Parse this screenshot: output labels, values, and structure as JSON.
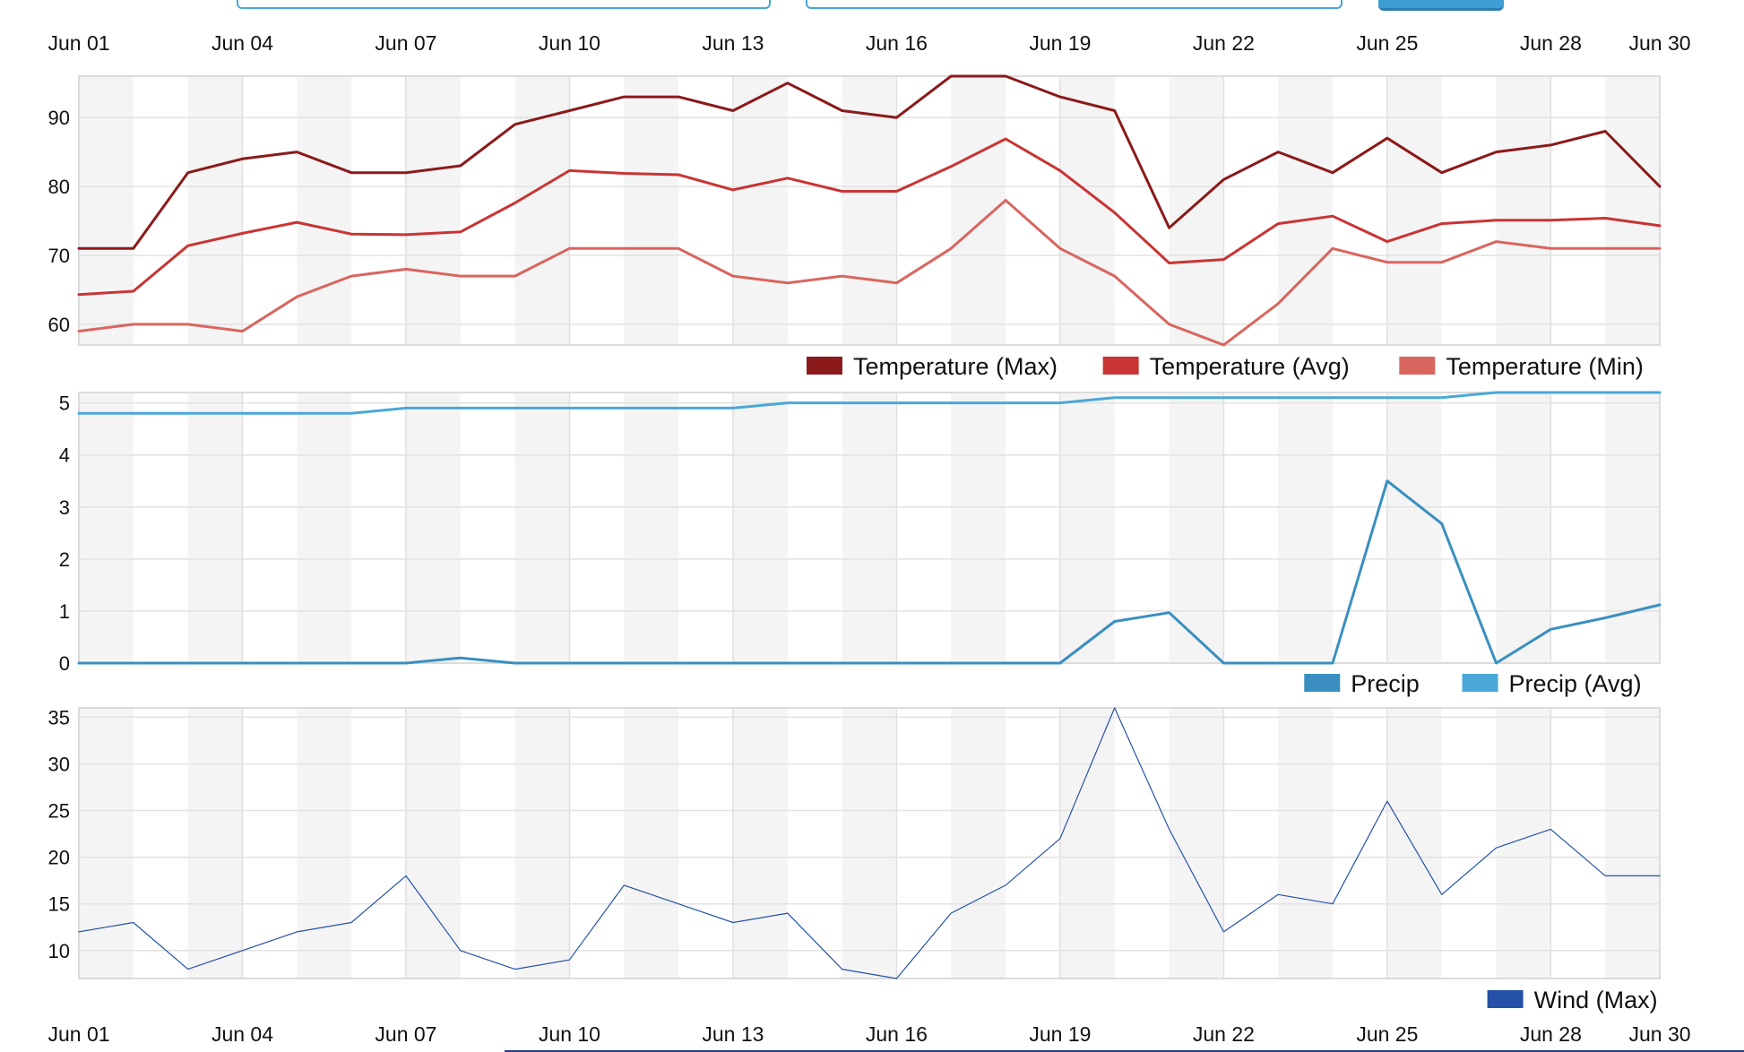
{
  "controls": {
    "input_1": "",
    "input_2": "",
    "button": ""
  },
  "chart_data": [
    {
      "type": "line",
      "x": [
        "Jun 01",
        "Jun 02",
        "Jun 03",
        "Jun 04",
        "Jun 05",
        "Jun 06",
        "Jun 07",
        "Jun 08",
        "Jun 09",
        "Jun 10",
        "Jun 11",
        "Jun 12",
        "Jun 13",
        "Jun 14",
        "Jun 15",
        "Jun 16",
        "Jun 17",
        "Jun 18",
        "Jun 19",
        "Jun 20",
        "Jun 21",
        "Jun 22",
        "Jun 23",
        "Jun 24",
        "Jun 25",
        "Jun 26",
        "Jun 27",
        "Jun 28",
        "Jun 29",
        "Jun 30"
      ],
      "x_tick_labels": [
        "Jun 01",
        "Jun 04",
        "Jun 07",
        "Jun 10",
        "Jun 13",
        "Jun 16",
        "Jun 19",
        "Jun 22",
        "Jun 25",
        "Jun 28",
        "Jun 30"
      ],
      "y_ticks": [
        60,
        70,
        80,
        90
      ],
      "ylim": [
        57,
        96
      ],
      "grid": true,
      "legend_position": "bottom-right",
      "series": [
        {
          "name": "Temperature (Max)",
          "color": "#8b1a1a",
          "width": 3,
          "values": [
            71,
            71,
            82,
            84,
            85,
            82,
            82,
            83,
            89,
            91,
            93,
            93,
            91,
            95,
            91,
            90,
            96,
            96,
            93,
            91,
            74,
            81,
            85,
            82,
            87,
            82,
            85,
            86,
            88,
            80
          ]
        },
        {
          "name": "Temperature (Avg)",
          "color": "#c93434",
          "width": 3,
          "values": [
            64.3,
            64.8,
            71.4,
            73.2,
            74.8,
            73.1,
            73.0,
            73.4,
            77.6,
            82.3,
            81.9,
            81.7,
            79.5,
            81.2,
            79.3,
            79.3,
            82.9,
            86.9,
            82.3,
            76.2,
            68.9,
            69.4,
            74.6,
            75.7,
            72.0,
            74.6,
            75.1,
            75.1,
            75.4,
            74.3
          ]
        },
        {
          "name": "Temperature (Min)",
          "color": "#d9655f",
          "width": 3,
          "values": [
            59,
            60,
            60,
            59,
            64,
            67,
            68,
            67,
            67,
            71,
            71,
            71,
            67,
            66,
            67,
            66,
            71,
            78,
            71,
            67,
            60,
            57,
            63,
            71,
            69,
            69,
            72,
            71,
            71,
            71
          ]
        }
      ]
    },
    {
      "type": "line",
      "x_tick_labels": [],
      "y_ticks": [
        0,
        1,
        2,
        3,
        4,
        5
      ],
      "ylim": [
        0,
        5.2
      ],
      "grid": true,
      "legend_position": "bottom-right",
      "series": [
        {
          "name": "Precip",
          "color": "#3a8fc0",
          "width": 3,
          "values": [
            0,
            0,
            0,
            0,
            0,
            0,
            0,
            0.1,
            0,
            0,
            0,
            0,
            0,
            0,
            0,
            0,
            0,
            0,
            0,
            0.8,
            0.97,
            0,
            0,
            0,
            3.5,
            2.68,
            0,
            0.65,
            0.87,
            1.12
          ]
        },
        {
          "name": "Precip (Avg)",
          "color": "#4aa8d8",
          "width": 3,
          "values": [
            4.8,
            4.8,
            4.8,
            4.8,
            4.8,
            4.8,
            4.9,
            4.9,
            4.9,
            4.9,
            4.9,
            4.9,
            4.9,
            5.0,
            5.0,
            5.0,
            5.0,
            5.0,
            5.0,
            5.1,
            5.1,
            5.1,
            5.1,
            5.1,
            5.1,
            5.1,
            5.2,
            5.2,
            5.2,
            5.2
          ]
        }
      ]
    },
    {
      "type": "line",
      "x_tick_labels": [
        "Jun 01",
        "Jun 04",
        "Jun 07",
        "Jun 10",
        "Jun 13",
        "Jun 16",
        "Jun 19",
        "Jun 22",
        "Jun 25",
        "Jun 28",
        "Jun 30"
      ],
      "y_ticks": [
        10,
        15,
        20,
        25,
        30,
        35
      ],
      "ylim": [
        7,
        36
      ],
      "grid": true,
      "legend_position": "bottom-right",
      "series": [
        {
          "name": "Wind (Max)",
          "color": "#2552a8",
          "width": 1.2,
          "values": [
            12,
            13,
            8,
            10,
            12,
            13,
            18,
            10,
            8,
            9,
            17,
            15,
            13,
            14,
            8,
            7,
            14,
            17,
            22,
            36,
            23,
            12,
            16,
            15,
            26,
            16,
            21,
            23,
            18,
            18
          ]
        }
      ]
    }
  ]
}
